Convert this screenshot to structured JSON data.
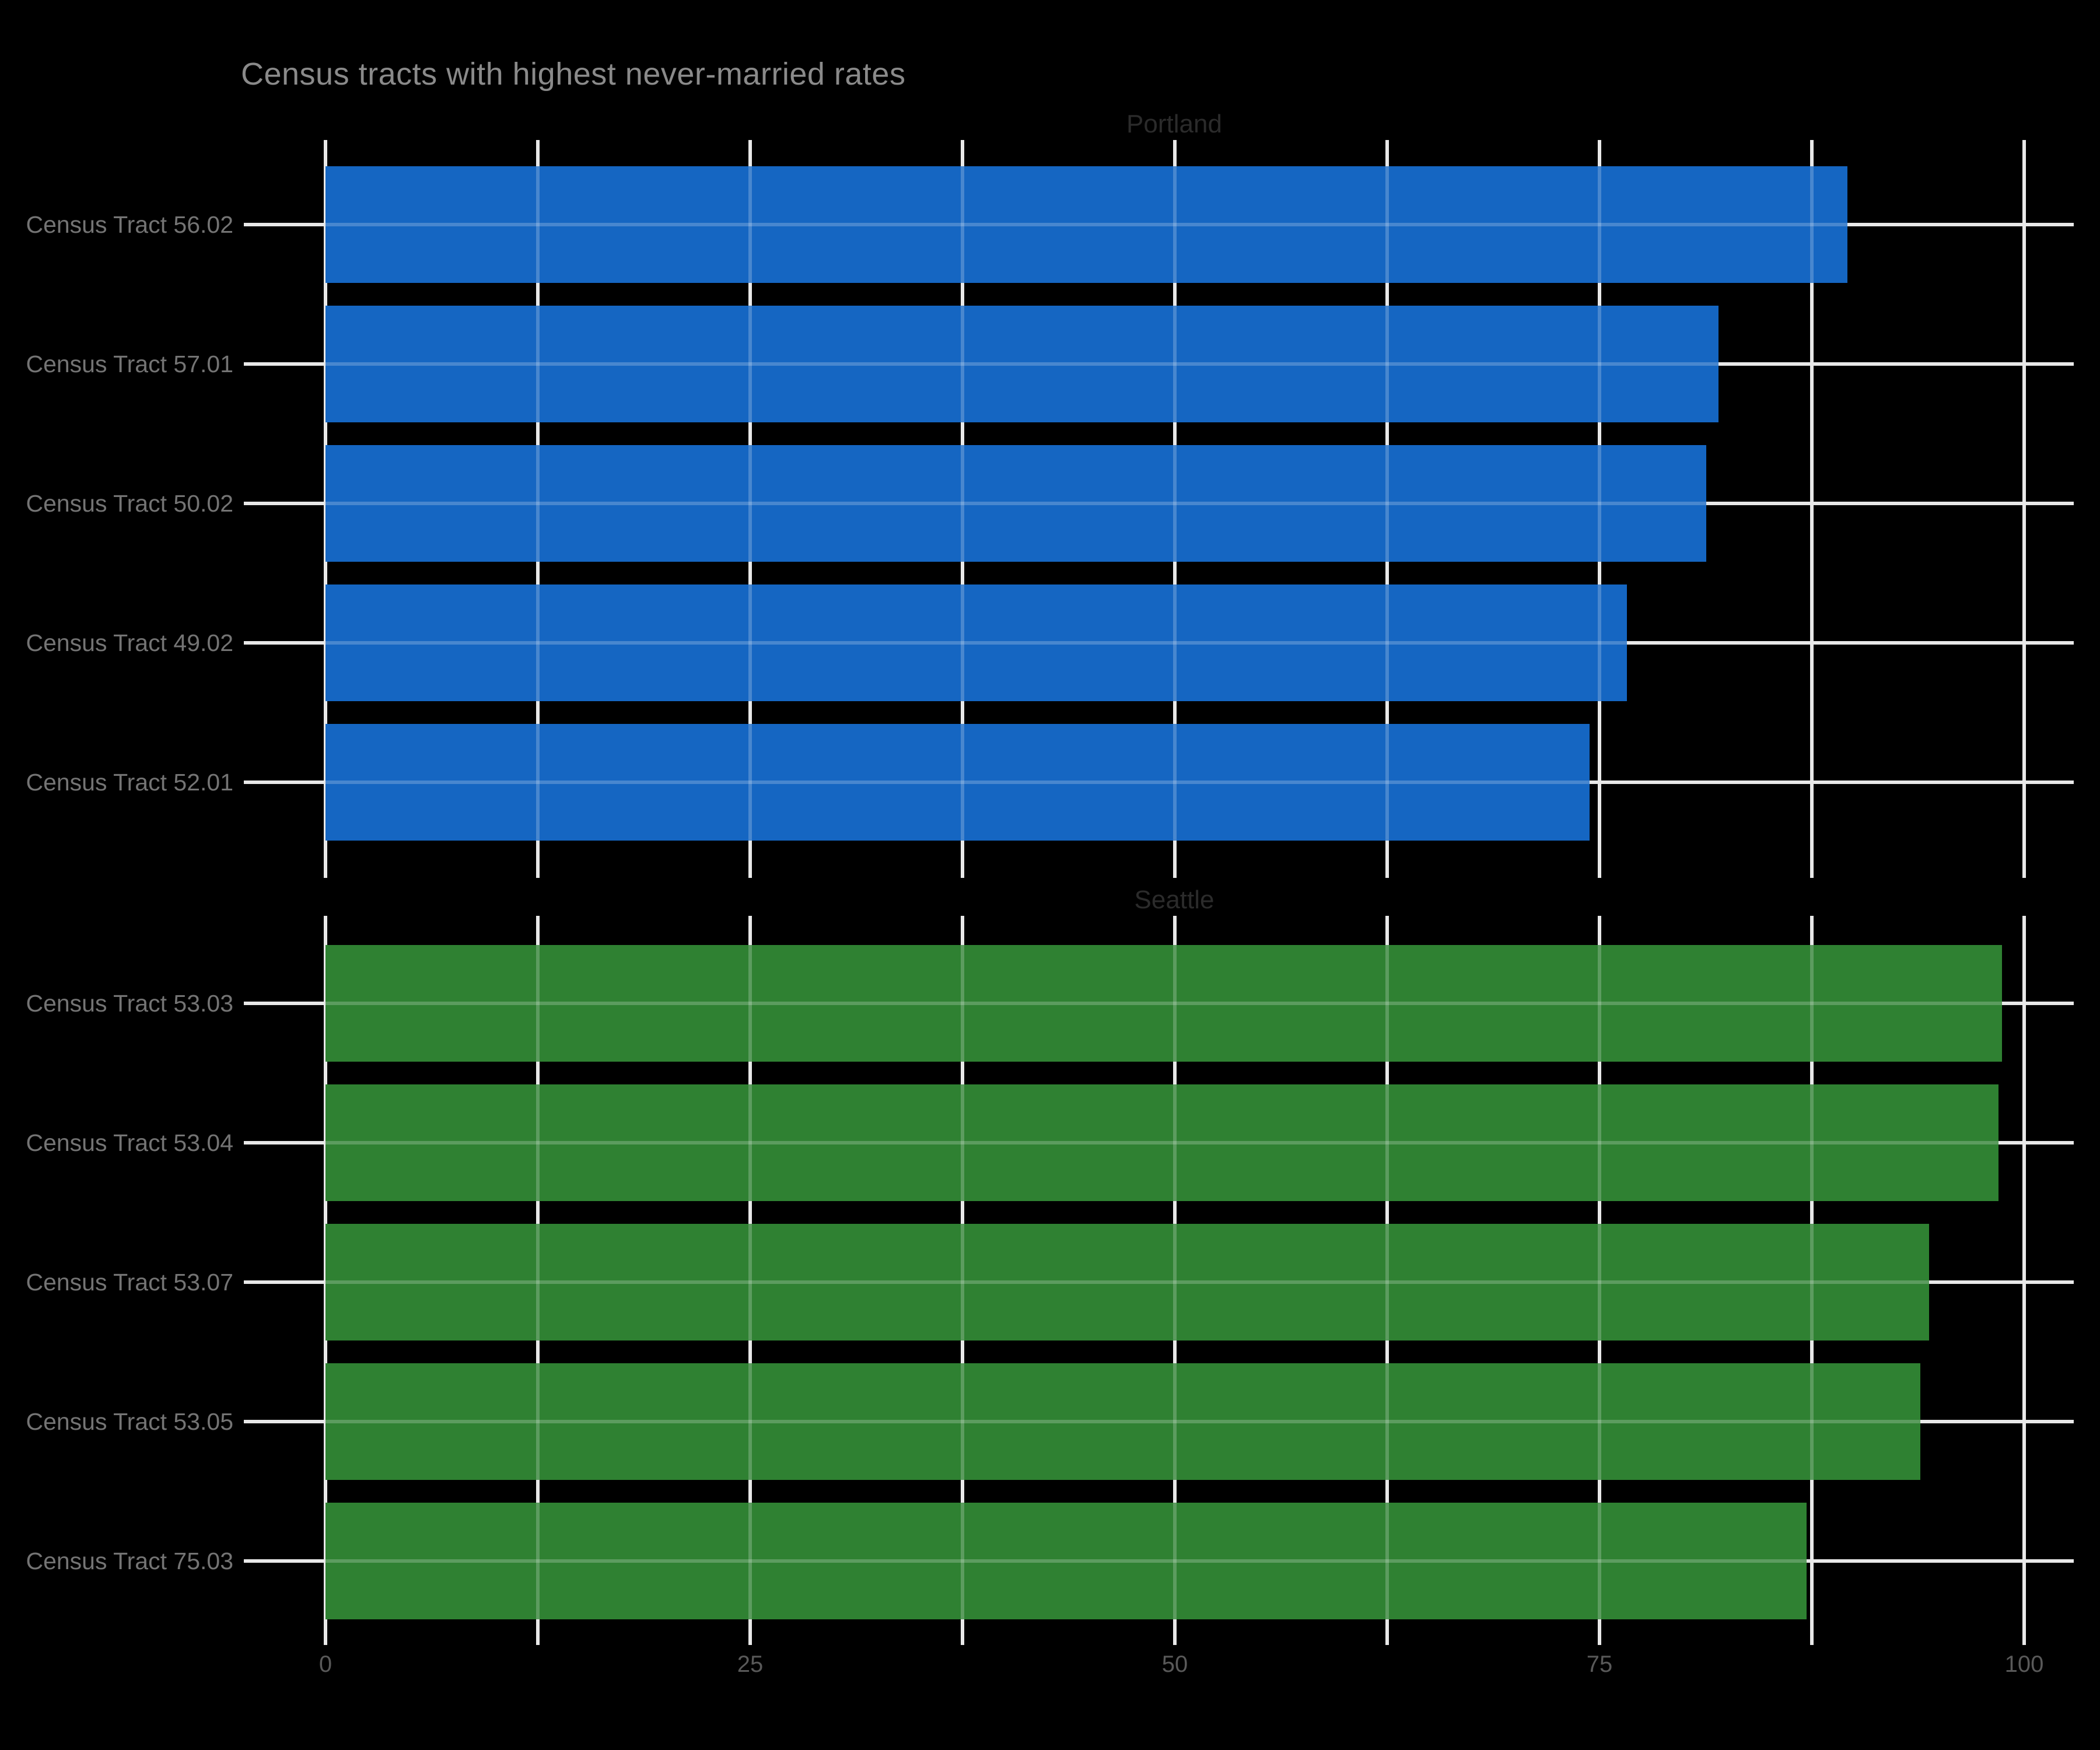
{
  "title": "Census tracts with highest never-married rates",
  "colors": {
    "background": "#000000",
    "gridline": "#e8e8e8",
    "title_text": "#8a8a8a",
    "facet_label_text": "#2b2b2b",
    "y_label_text": "#747474",
    "x_tick_text": "#595959",
    "portland_bar": "#1566c2",
    "seattle_bar": "#2f8132"
  },
  "x_axis": {
    "tick_labels": [
      "0",
      "25",
      "50",
      "75",
      "100"
    ],
    "tick_values": [
      0,
      25,
      50,
      75,
      100
    ],
    "minor_step": 12.5
  },
  "chart_data": {
    "type": "bar",
    "orientation": "horizontal",
    "title": "Census tracts with highest never-married rates",
    "xlabel": "",
    "ylabel": "",
    "xlim": [
      0,
      103
    ],
    "grid": "white major+minor vertical gridlines every 12.5, horizontal gridline per category, on black background",
    "legend_position": "none",
    "facets": [
      {
        "label": "Portland",
        "color": "#1566c2",
        "categories": [
          "Census Tract 56.02",
          "Census Tract 57.01",
          "Census Tract 50.02",
          "Census Tract 49.02",
          "Census Tract 52.01"
        ],
        "values": [
          89.6,
          82.0,
          81.3,
          76.6,
          74.4
        ]
      },
      {
        "label": "Seattle",
        "color": "#2f8132",
        "categories": [
          "Census Tract 53.03",
          "Census Tract 53.04",
          "Census Tract 53.07",
          "Census Tract 53.05",
          "Census Tract 75.03"
        ],
        "values": [
          98.7,
          98.5,
          94.4,
          93.9,
          87.2
        ]
      }
    ]
  }
}
